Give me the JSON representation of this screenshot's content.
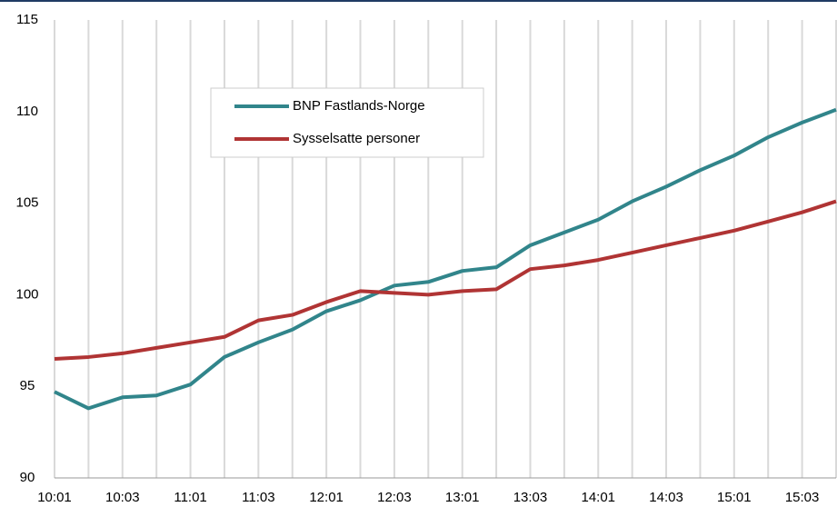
{
  "chart_data": {
    "type": "line",
    "categories": [
      "10:01",
      null,
      "10:03",
      null,
      "11:01",
      null,
      "11:03",
      null,
      "12:01",
      null,
      "12:03",
      null,
      "13:01",
      null,
      "13:03",
      null,
      "14:01",
      null,
      "14:03",
      null,
      "15:01",
      null,
      "15:03",
      null
    ],
    "series": [
      {
        "name": "BNP Fastlands-Norge",
        "color": "#31858b",
        "values": [
          94.7,
          93.8,
          94.4,
          94.5,
          95.1,
          96.6,
          97.4,
          98.1,
          99.1,
          99.7,
          100.5,
          100.7,
          101.3,
          101.5,
          102.7,
          103.4,
          104.1,
          105.1,
          105.9,
          106.8,
          107.6,
          108.6,
          109.4,
          110.1
        ]
      },
      {
        "name": "Sysselsatte personer",
        "color": "#b03434",
        "values": [
          96.5,
          96.6,
          96.8,
          97.1,
          97.4,
          97.7,
          98.6,
          98.9,
          99.6,
          100.2,
          100.1,
          100.0,
          100.2,
          100.3,
          101.4,
          101.6,
          101.9,
          102.3,
          102.7,
          103.1,
          103.5,
          104.0,
          104.5,
          105.1
        ]
      }
    ],
    "ylim": [
      90,
      115
    ],
    "yticks": [
      90,
      95,
      100,
      105,
      110,
      115
    ],
    "grid": true
  }
}
